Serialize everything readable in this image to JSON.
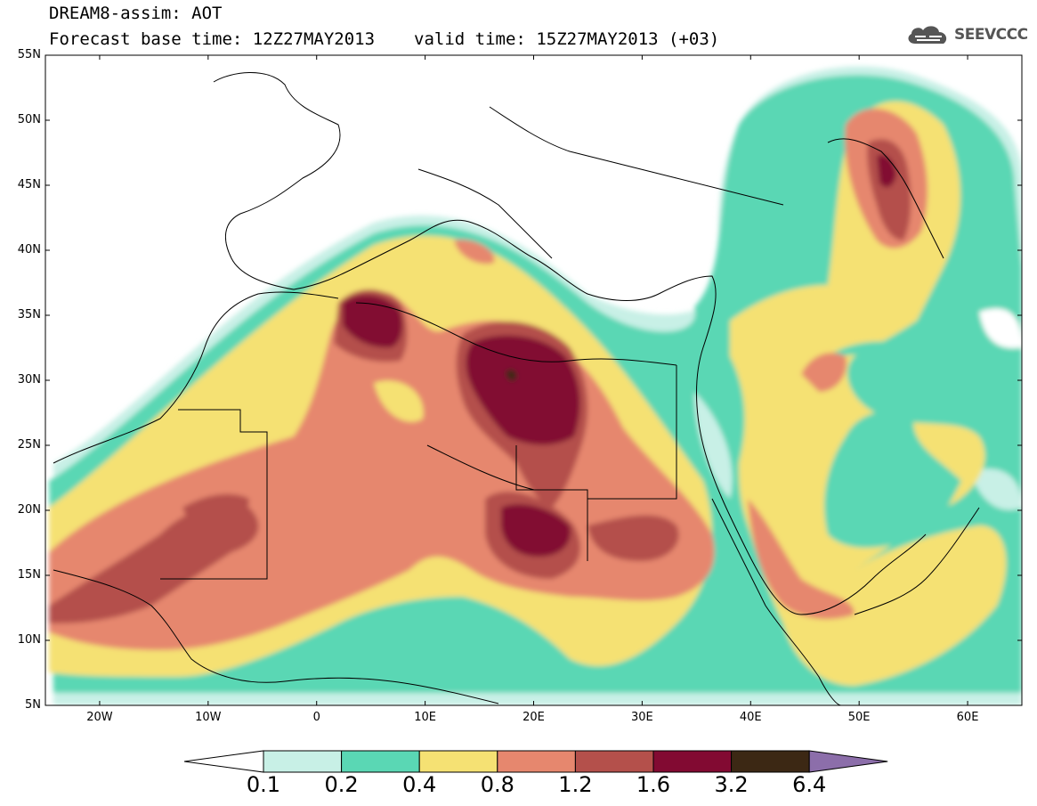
{
  "title": {
    "line1": "DREAM8-assim: AOT",
    "base_time": "Forecast base time: 12Z27MAY2013",
    "valid_time": "valid time: 15Z27MAY2013 (+03)"
  },
  "logo": {
    "text": "SEEVCCC",
    "icon": "cloud-icon"
  },
  "axes": {
    "lat_labels": [
      "55N",
      "50N",
      "45N",
      "40N",
      "35N",
      "30N",
      "25N",
      "20N",
      "15N",
      "10N",
      "5N"
    ],
    "lon_labels": [
      "20W",
      "10W",
      "0",
      "10E",
      "20E",
      "30E",
      "40E",
      "50E",
      "60E"
    ],
    "lat_range": [
      5,
      55
    ],
    "lon_range": [
      -25,
      65
    ]
  },
  "colorbar": {
    "levels": [
      "0.1",
      "0.2",
      "0.4",
      "0.8",
      "1.2",
      "1.6",
      "3.2",
      "6.4"
    ],
    "colors": [
      "#c8f0e6",
      "#5ad7b4",
      "#f5e173",
      "#e6876e",
      "#b4504b",
      "#820a32",
      "#3c2814",
      "#8c6eaa"
    ],
    "under_color": "#ffffff"
  }
}
